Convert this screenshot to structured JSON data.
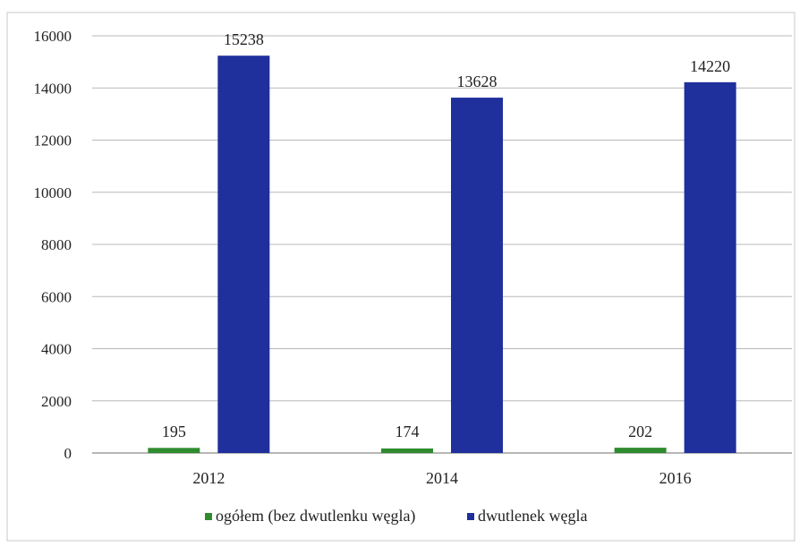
{
  "chart_data": {
    "type": "bar",
    "title": "",
    "xlabel": "",
    "ylabel": "",
    "categories": [
      "2012",
      "2014",
      "2016"
    ],
    "series": [
      {
        "name": "ogółem (bez dwutlenku węgla)",
        "values": [
          195,
          174,
          202
        ],
        "color": "#2E8B2E"
      },
      {
        "name": "dwutlenek węgla",
        "values": [
          15238,
          13628,
          14220
        ],
        "color": "#1F2F9C"
      }
    ],
    "ylim": [
      0,
      16000
    ],
    "yticks": [
      "0",
      "2000",
      "4000",
      "6000",
      "8000",
      "10000",
      "12000",
      "14000",
      "16000"
    ],
    "grid": true,
    "legend_position": "bottom",
    "data_labels": [
      [
        "195",
        "15238"
      ],
      [
        "174",
        "13628"
      ],
      [
        "202",
        "14220"
      ]
    ]
  },
  "colors": {
    "grid": "#b8b8b8",
    "axis": "#8a8a8a",
    "text": "#222222",
    "border": "#c8c8c8"
  }
}
